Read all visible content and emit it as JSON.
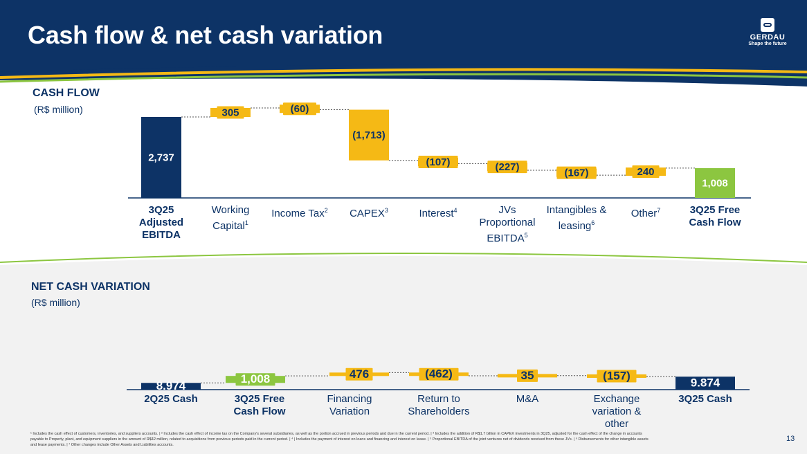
{
  "title": "Cash flow & net cash variation",
  "logo": {
    "name": "GERDAU",
    "tagline": "Shape the future"
  },
  "colors": {
    "navy": "#0d3366",
    "yellow": "#f5b915",
    "green": "#8cc640"
  },
  "cash_flow": {
    "title": "CASH FLOW",
    "subtitle": "(R$ million)",
    "labels": [
      {
        "text": "3Q25 Adjusted EBITDA",
        "sup": ""
      },
      {
        "text": "Working Capital",
        "sup": "1"
      },
      {
        "text": "Income Tax",
        "sup": "2"
      },
      {
        "text": "CAPEX",
        "sup": "3"
      },
      {
        "text": "Interest",
        "sup": "4"
      },
      {
        "text": "JVs Proportional EBITDA",
        "sup": "5"
      },
      {
        "text": "Intangibles & leasing",
        "sup": "6"
      },
      {
        "text": "Other",
        "sup": "7"
      },
      {
        "text": "3Q25 Free Cash Flow",
        "sup": ""
      }
    ]
  },
  "net_cash": {
    "title": "NET CASH VARIATION",
    "subtitle": "(R$ million)",
    "labels": [
      {
        "text": "2Q25 Cash",
        "sup": ""
      },
      {
        "text": "3Q25 Free Cash Flow",
        "sup": ""
      },
      {
        "text": "Financing Variation",
        "sup": ""
      },
      {
        "text": "Return to Shareholders",
        "sup": ""
      },
      {
        "text": "M&A",
        "sup": ""
      },
      {
        "text": "Exchange variation & other",
        "sup": ""
      },
      {
        "text": "3Q25 Cash",
        "sup": ""
      }
    ]
  },
  "chart_data": [
    {
      "type": "bar",
      "title": "CASH FLOW",
      "subtitle": "(R$ million)",
      "categories": [
        "3Q25 Adjusted EBITDA",
        "Working Capital",
        "Income Tax",
        "CAPEX",
        "Interest",
        "JVs Proportional EBITDA",
        "Intangibles & leasing",
        "Other",
        "3Q25 Free Cash Flow"
      ],
      "values": [
        2737,
        305,
        -60,
        -1713,
        -107,
        -227,
        -167,
        240,
        1008
      ],
      "value_labels": [
        "2,737",
        "305",
        "(60)",
        "(1,713)",
        "(107)",
        "(227)",
        "(167)",
        "240",
        "1,008"
      ],
      "kinds": [
        "total",
        "delta",
        "delta",
        "delta",
        "delta",
        "delta",
        "delta",
        "delta",
        "total"
      ]
    },
    {
      "type": "bar",
      "title": "NET CASH VARIATION",
      "subtitle": "(R$ million)",
      "categories": [
        "2Q25 Cash",
        "3Q25 Free Cash Flow",
        "Financing Variation",
        "Return to Shareholders",
        "M&A",
        "Exchange variation & other",
        "3Q25 Cash"
      ],
      "values": [
        8974,
        1008,
        476,
        -462,
        35,
        -157,
        9874
      ],
      "value_labels": [
        "8.974",
        "1,008",
        "476",
        "(462)",
        "35",
        "(157)",
        "9.874"
      ],
      "kinds": [
        "total",
        "delta",
        "delta",
        "delta",
        "delta",
        "delta",
        "total"
      ]
    }
  ],
  "footnote": "¹ Includes the cash effect of customers, inventories, and suppliers accounts. | ² Includes the cash effect of income tax on the Company's several subsidiaries, as well as the portion accrued in previous periods and due in the current period. | ³ Includes the addition of R$1.7 billion in CAPEX investments in 3Q25, adjusted for the cash effect of the change in accounts payable to Property, plant, and equipment suppliers in the amount of R$42 million, related to acquisitions from previous periods paid in the current period. | ⁴ | Includes the payment of interest on loans and financing and interest on lease. | ⁵ Proportional EBITDA of the joint ventures net of dividends received from these JVs. | ⁶ Disbursements for other intangible assets and lease payments. | ⁷ Other changes include Other Assets and Liabilities accounts.",
  "page_number": "13"
}
